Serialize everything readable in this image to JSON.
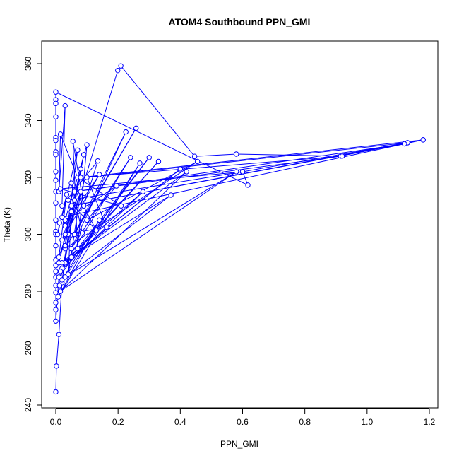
{
  "chart_data": {
    "type": "line",
    "title": "ATOM4 Southbound PPN_GMI",
    "xlabel": "PPN_GMI",
    "ylabel": "Theta (K)",
    "xlim": [
      0,
      1.2
    ],
    "ylim": [
      240,
      360
    ],
    "xticks": [
      "0.0",
      "0.2",
      "0.4",
      "0.6",
      "0.8",
      "1.0",
      "1.2"
    ],
    "yticks": [
      "240",
      "260",
      "280",
      "300",
      "320",
      "340",
      "360"
    ],
    "grid": false,
    "color": "#0000ff",
    "marker": "open-circle",
    "points": [
      [
        0,
        244.6
      ],
      [
        0.002,
        253.7
      ],
      [
        0.01,
        264.8
      ],
      [
        0.02,
        283
      ],
      [
        0.04,
        300
      ],
      [
        0.199,
        357.6
      ],
      [
        0.209,
        359.2
      ],
      [
        0.446,
        327.4
      ],
      [
        0.58,
        328.2
      ],
      [
        0.915,
        327.5
      ],
      [
        1.13,
        332.2
      ],
      [
        1.18,
        333.2
      ],
      [
        0.6,
        322
      ],
      [
        0.617,
        317.3
      ],
      [
        0,
        350
      ],
      [
        0,
        347.3
      ],
      [
        0,
        346
      ],
      [
        0,
        341.3
      ],
      [
        0,
        334
      ],
      [
        0,
        333
      ],
      [
        0,
        329
      ],
      [
        0,
        328
      ],
      [
        0,
        322
      ],
      [
        0,
        319
      ],
      [
        0,
        315
      ],
      [
        0,
        311
      ],
      [
        0,
        305
      ],
      [
        0,
        301
      ],
      [
        0,
        300
      ],
      [
        0,
        296
      ],
      [
        0,
        291
      ],
      [
        0,
        289
      ],
      [
        0,
        287
      ],
      [
        0,
        285
      ],
      [
        0,
        282
      ],
      [
        0,
        279.5
      ],
      [
        0,
        276
      ],
      [
        0,
        273.5
      ],
      [
        0,
        269.5
      ],
      [
        0.01,
        285
      ],
      [
        0.3,
        327
      ],
      [
        0.02,
        288
      ],
      [
        0.33,
        325.6
      ],
      [
        0.03,
        290
      ],
      [
        0.4,
        323
      ],
      [
        0.05,
        292
      ],
      [
        0.42,
        322
      ],
      [
        0.015,
        280
      ],
      [
        0.58,
        322
      ],
      [
        0.03,
        285
      ],
      [
        0.37,
        313.8
      ],
      [
        0.02,
        290
      ],
      [
        0.28,
        315
      ],
      [
        0.015,
        287
      ],
      [
        0.24,
        327
      ],
      [
        0.05,
        295
      ],
      [
        0.225,
        336
      ],
      [
        0.06,
        300
      ],
      [
        0.258,
        337.3
      ],
      [
        0.03,
        295
      ],
      [
        0.455,
        325.6
      ],
      [
        0.1,
        305
      ],
      [
        0.195,
        317
      ],
      [
        0.03,
        305
      ],
      [
        0.1,
        331.4
      ],
      [
        0.07,
        295
      ],
      [
        0.055,
        332.7
      ],
      [
        0.09,
        310
      ],
      [
        0.135,
        325.8
      ],
      [
        0.02,
        310
      ],
      [
        0.03,
        345.2
      ],
      [
        0.01,
        315
      ],
      [
        0.015,
        335.2
      ],
      [
        0.07,
        320
      ],
      [
        0.21,
        310
      ],
      [
        0.015,
        316
      ],
      [
        0.6,
        322
      ],
      [
        0.04,
        312
      ],
      [
        0.13,
        301.4
      ],
      [
        0.05,
        318
      ],
      [
        0.085,
        300.5
      ],
      [
        0.03,
        300
      ],
      [
        0.163,
        302.5
      ],
      [
        0.1,
        320
      ],
      [
        1.13,
        332.2
      ],
      [
        0.05,
        310
      ],
      [
        1.12,
        331.8
      ],
      [
        0.06,
        315
      ],
      [
        0.92,
        327.5
      ],
      [
        0.08,
        320
      ],
      [
        1.18,
        333.2
      ],
      [
        0.02,
        306
      ],
      [
        0.07,
        329.6
      ],
      [
        0.03,
        296
      ],
      [
        0.09,
        328
      ],
      [
        0.012,
        282
      ],
      [
        0.27,
        325
      ],
      [
        0.008,
        278
      ],
      [
        0.14,
        305
      ],
      [
        0.02,
        284
      ],
      [
        0.08,
        323
      ],
      [
        0.01,
        290
      ],
      [
        0.06,
        312
      ],
      [
        0.03,
        303
      ],
      [
        0.14,
        321
      ],
      [
        0.02,
        298
      ],
      [
        0.05,
        308
      ],
      [
        0.04,
        286
      ],
      [
        0.08,
        315
      ],
      [
        0.01,
        292
      ],
      [
        0.035,
        314
      ],
      [
        0.006,
        300
      ],
      [
        0.012,
        304
      ]
    ]
  }
}
